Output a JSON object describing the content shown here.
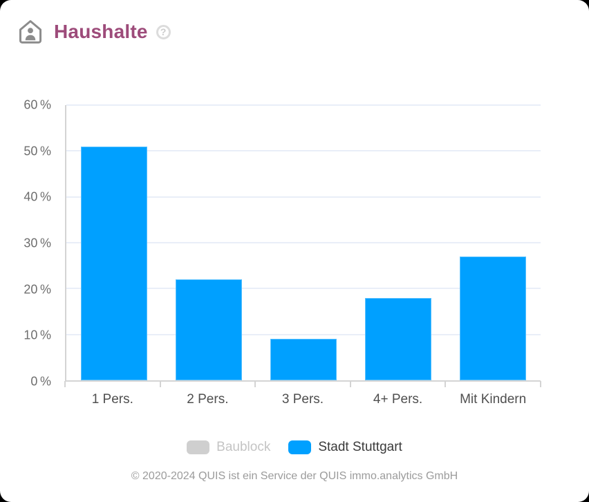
{
  "header": {
    "title": "Haushalte",
    "help_glyph": "?"
  },
  "chart_data": {
    "type": "bar",
    "title": "Haushalte",
    "categories": [
      "1 Pers.",
      "2 Pers.",
      "3 Pers.",
      "4+ Pers.",
      "Mit Kindern"
    ],
    "series": [
      {
        "name": "Stadt Stuttgart",
        "values": [
          51,
          22,
          9,
          18,
          27
        ],
        "color": "#00a0ff"
      }
    ],
    "ylim": [
      0,
      60
    ],
    "ytick_step": 10,
    "ytick_suffix": " %",
    "grid": true,
    "legend_position": "bottom",
    "legend": {
      "items": [
        {
          "label": "Baublock",
          "color": "#cfcfcf",
          "active": false
        },
        {
          "label": "Stadt Stuttgart",
          "color": "#00a0ff",
          "active": true
        }
      ]
    }
  },
  "footer": {
    "copyright": "© 2020-2024 QUIS ist ein Service der QUIS immo.analytics GmbH"
  },
  "colors": {
    "accent_blue": "#00a0ff",
    "title_plum": "#9d4b7a",
    "legend_disabled": "#cfcfcf",
    "gridline": "#e9eef8",
    "axis": "#d4d4d4"
  }
}
